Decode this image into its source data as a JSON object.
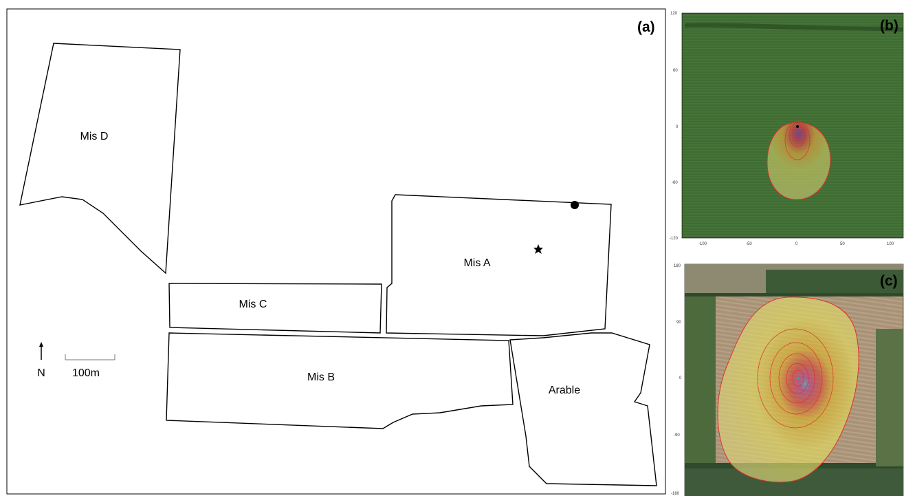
{
  "panel_a": {
    "label": "(a)",
    "fields": [
      {
        "name": "Mis D"
      },
      {
        "name": "Mis A"
      },
      {
        "name": "Mis C"
      },
      {
        "name": "Mis B"
      },
      {
        "name": "Arable"
      }
    ],
    "north_label": "N",
    "scale_label": "100m"
  },
  "panel_b": {
    "label": "(b)",
    "y_ticks": [
      "120",
      "60",
      "0",
      "-60",
      "-120"
    ],
    "x_ticks": [
      "-100",
      "-50",
      "0",
      "50",
      "100"
    ]
  },
  "panel_c": {
    "label": "(c)",
    "y_ticks": [
      "180",
      "90",
      "0",
      "-90",
      "-180"
    ]
  },
  "colors": {
    "field_stroke": "#000000",
    "grass": "#3e6b32",
    "footprint_outline": "#e0302a",
    "footprint_fill": "#e8e070"
  }
}
